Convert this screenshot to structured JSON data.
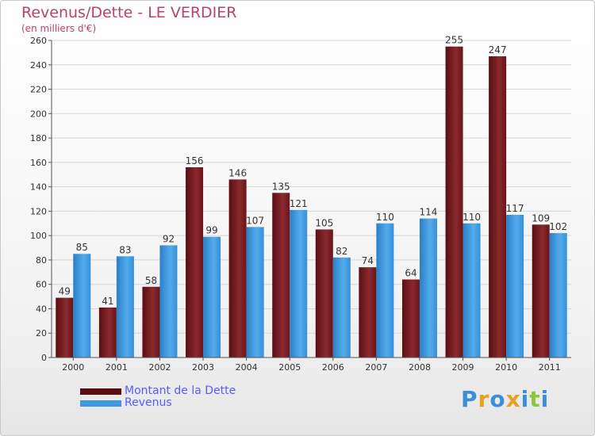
{
  "header": {
    "title": "Revenus/Dette - LE VERDIER",
    "subtitle": "(en milliers d'€)"
  },
  "chart_data": {
    "type": "bar",
    "categories": [
      "2000",
      "2001",
      "2002",
      "2003",
      "2004",
      "2005",
      "2006",
      "2007",
      "2008",
      "2009",
      "2010",
      "2011"
    ],
    "series": [
      {
        "name": "Montant de la Dette",
        "color": "#7a1c20",
        "values": [
          49,
          41,
          58,
          156,
          146,
          135,
          105,
          74,
          64,
          255,
          247,
          109
        ]
      },
      {
        "name": "Revenus",
        "color": "#3d9ae0",
        "values": [
          85,
          83,
          92,
          99,
          107,
          121,
          82,
          110,
          114,
          110,
          117,
          102
        ]
      }
    ],
    "ylim": [
      0,
      260
    ],
    "yticks": [
      0,
      20,
      40,
      60,
      80,
      100,
      120,
      140,
      160,
      180,
      200,
      220,
      240,
      260
    ],
    "grid": true,
    "legend_position": "bottom-left"
  },
  "logo": {
    "letters": [
      "P",
      "r",
      "o",
      "x",
      "i",
      "t",
      "i"
    ],
    "colors": [
      "#3a8fd8",
      "#e8a020",
      "#3a8fd8",
      "#e8a020",
      "#3a8fd8",
      "#8cc63f",
      "#3a8fd8"
    ]
  }
}
